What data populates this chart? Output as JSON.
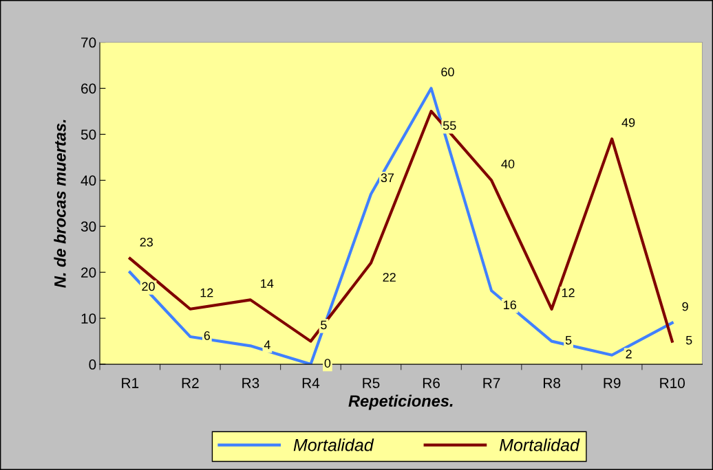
{
  "chart_data": {
    "type": "line",
    "xlabel": "Repeticiones.",
    "ylabel": "N. de brocas muertas.",
    "categories": [
      "R1",
      "R2",
      "R3",
      "R4",
      "R5",
      "R6",
      "R7",
      "R8",
      "R9",
      "R10"
    ],
    "series": [
      {
        "name": "Mortalidad",
        "color": "#4080ff",
        "values": [
          20,
          6,
          4,
          0,
          37,
          60,
          16,
          5,
          2,
          9
        ]
      },
      {
        "name": "Mortalidad",
        "color": "#800000",
        "values": [
          23,
          12,
          14,
          5,
          22,
          55,
          40,
          12,
          49,
          5
        ]
      }
    ],
    "ylim": [
      0,
      70
    ],
    "yticks": [
      0,
      10,
      20,
      30,
      40,
      50,
      60,
      70
    ],
    "data_labels": true,
    "grid": false,
    "legend": "bottom",
    "marker": "none",
    "line_style": "solid"
  }
}
